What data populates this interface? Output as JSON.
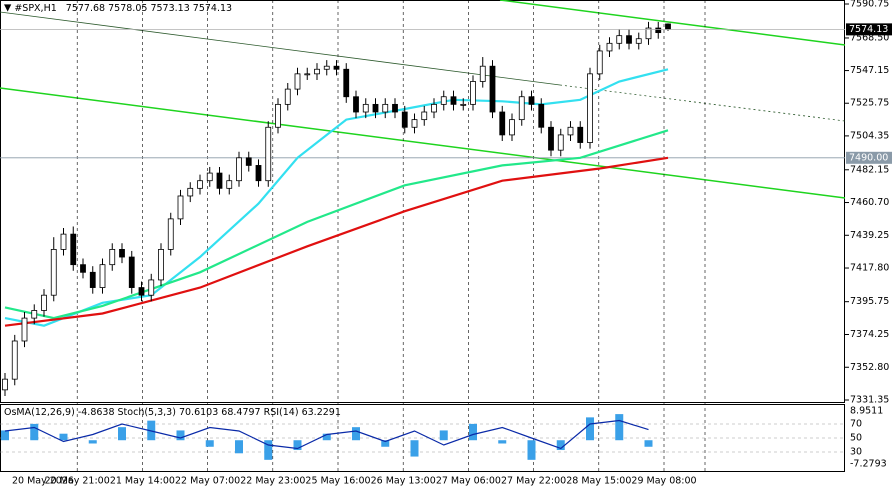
{
  "header": {
    "symbol": "#SPX,H1",
    "open": 7577.68,
    "high": 7578.05,
    "low": 7573.13,
    "close": 7574.13
  },
  "chart_data": [
    {
      "type": "candlestick",
      "open": [
        7338,
        7345,
        7370,
        7385,
        7390,
        7400,
        7430,
        7440,
        7420,
        7415,
        7405,
        7420,
        7430,
        7425,
        7405,
        7400,
        7410,
        7430,
        7450,
        7465,
        7470,
        7475,
        7480,
        7470,
        7475,
        7490,
        7485,
        7475,
        7510,
        7525,
        7535,
        7545,
        7545,
        7548,
        7550,
        7548,
        7530,
        7520,
        7525,
        7520,
        7525,
        7520,
        7510,
        7515,
        7520,
        7525,
        7530,
        7525,
        7525,
        7540,
        7550,
        7520,
        7505,
        7515,
        7530,
        7525,
        7510,
        7495,
        7505,
        7510,
        7500,
        7545,
        7560,
        7565,
        7570,
        7565,
        7568,
        7575,
        7577.68
      ],
      "high": [
        7349,
        7374,
        7389,
        7394,
        7404,
        7438,
        7444,
        7445,
        7424,
        7419,
        7424,
        7434,
        7434,
        7429,
        7409,
        7414,
        7434,
        7454,
        7469,
        7474,
        7479,
        7484,
        7484,
        7479,
        7494,
        7494,
        7489,
        7514,
        7529,
        7539,
        7549,
        7549,
        7552,
        7554,
        7554,
        7552,
        7534,
        7529,
        7529,
        7529,
        7529,
        7524,
        7519,
        7524,
        7529,
        7534,
        7534,
        7529,
        7544,
        7556,
        7554,
        7524,
        7519,
        7534,
        7534,
        7529,
        7514,
        7509,
        7514,
        7514,
        7549,
        7564,
        7569,
        7574,
        7574,
        7572,
        7579,
        7579,
        7578.05
      ],
      "low": [
        7334,
        7341,
        7366,
        7381,
        7386,
        7396,
        7426,
        7416,
        7411,
        7401,
        7401,
        7416,
        7421,
        7401,
        7396,
        7396,
        7406,
        7426,
        7446,
        7461,
        7466,
        7471,
        7466,
        7466,
        7471,
        7481,
        7471,
        7471,
        7506,
        7521,
        7531,
        7541,
        7541,
        7544,
        7544,
        7526,
        7516,
        7516,
        7516,
        7516,
        7516,
        7506,
        7506,
        7511,
        7516,
        7521,
        7521,
        7521,
        7521,
        7536,
        7516,
        7501,
        7501,
        7511,
        7521,
        7506,
        7491,
        7491,
        7501,
        7496,
        7496,
        7541,
        7556,
        7561,
        7561,
        7561,
        7564,
        7568,
        7573.13
      ],
      "close": [
        7345,
        7370,
        7385,
        7390,
        7400,
        7430,
        7440,
        7420,
        7415,
        7405,
        7420,
        7430,
        7425,
        7405,
        7400,
        7410,
        7430,
        7450,
        7465,
        7470,
        7475,
        7480,
        7470,
        7475,
        7490,
        7485,
        7475,
        7510,
        7525,
        7535,
        7545,
        7545,
        7548,
        7550,
        7548,
        7530,
        7520,
        7525,
        7520,
        7525,
        7520,
        7510,
        7515,
        7520,
        7525,
        7530,
        7525,
        7525,
        7540,
        7550,
        7520,
        7505,
        7515,
        7530,
        7525,
        7510,
        7495,
        7505,
        7510,
        7500,
        7545,
        7560,
        7565,
        7570,
        7565,
        7568,
        7575,
        7572,
        7574.13
      ],
      "ylim": [
        7330.04,
        7593.37
      ],
      "yticks": [
        7590.75,
        {
          "value": 7568.5,
          "label": "7568.50"
        },
        7547.15,
        7525.75,
        7504.35,
        7482.15,
        {
          "value": 7460.7,
          "label": "7460.70"
        },
        7439.25,
        {
          "value": 7417.8,
          "label": "7417.80"
        },
        7395.75,
        7374.25,
        {
          "value": 7352.8,
          "label": "7352.80"
        },
        7331.35
      ],
      "current_price": 7574.13,
      "level_line": {
        "value": 7490,
        "label": "7490.00"
      },
      "time_labels": [
        "20 May 2026",
        "20 May 21:00",
        "21 May 14:00",
        "22 May 07:00",
        "22 May 23:00",
        "25 May 16:00",
        "26 May 13:00",
        "27 May 06:00",
        "27 May 22:00",
        "28 May 15:00",
        "29 May 08:00"
      ],
      "series": [
        {
          "color": "#33e0f0",
          "x": [
            0,
            4,
            10,
            15,
            20,
            26,
            30,
            35,
            41,
            46,
            51,
            55,
            59,
            63,
            68
          ],
          "values": [
            7385,
            7380,
            7395,
            7400,
            7425,
            7460,
            7490,
            7515,
            7522,
            7528,
            7527,
            7525,
            7528,
            7540,
            7548
          ]
        },
        {
          "color": "#22e88a",
          "x": [
            0,
            5,
            10,
            20,
            31,
            41,
            51,
            59,
            68
          ],
          "values": [
            7392,
            7385,
            7393,
            7415,
            7448,
            7472,
            7485,
            7490,
            7508
          ]
        },
        {
          "color": "#e01010",
          "x": [
            0,
            10,
            20,
            31,
            41,
            51,
            61,
            68
          ],
          "values": [
            7380,
            7388,
            7405,
            7432,
            7455,
            7475,
            7483,
            7490
          ]
        }
      ]
    },
    {
      "type": "oscillator",
      "osma_label": "OsMA(12,26,9)",
      "osma_value": -4.8638,
      "stoch_label": "Stoch(5,3,3)",
      "stoch_values": [
        70.6103,
        68.4797
      ],
      "rsi_label": "RSI(14)",
      "rsi_value": 63.2291,
      "osma_lim": [
        -7.2793,
        8.9511
      ],
      "rsi_lim": [
        0,
        100
      ],
      "levels": [
        70,
        50,
        30
      ],
      "osma": {
        "color": "#3aa0e8",
        "x": [
          0,
          3,
          6,
          9,
          12,
          15,
          18,
          21,
          24,
          27,
          30,
          33,
          36,
          39,
          42,
          45,
          48,
          51,
          54,
          57,
          60,
          63,
          66
        ],
        "values": [
          3,
          5,
          2,
          -1,
          4,
          6,
          3,
          -2,
          -4,
          -6,
          -3,
          2,
          4,
          -2,
          -5,
          3,
          5,
          -1,
          -6,
          -3,
          7,
          8,
          -2
        ]
      },
      "rsi": {
        "color": "#0a2aa8",
        "x": [
          0,
          3,
          6,
          9,
          12,
          15,
          18,
          21,
          24,
          27,
          30,
          33,
          36,
          39,
          42,
          45,
          48,
          51,
          54,
          57,
          60,
          63,
          66
        ],
        "values": [
          60,
          65,
          45,
          55,
          70,
          60,
          50,
          65,
          60,
          40,
          35,
          55,
          60,
          45,
          60,
          40,
          55,
          65,
          50,
          35,
          70,
          75,
          62
        ]
      }
    }
  ]
}
